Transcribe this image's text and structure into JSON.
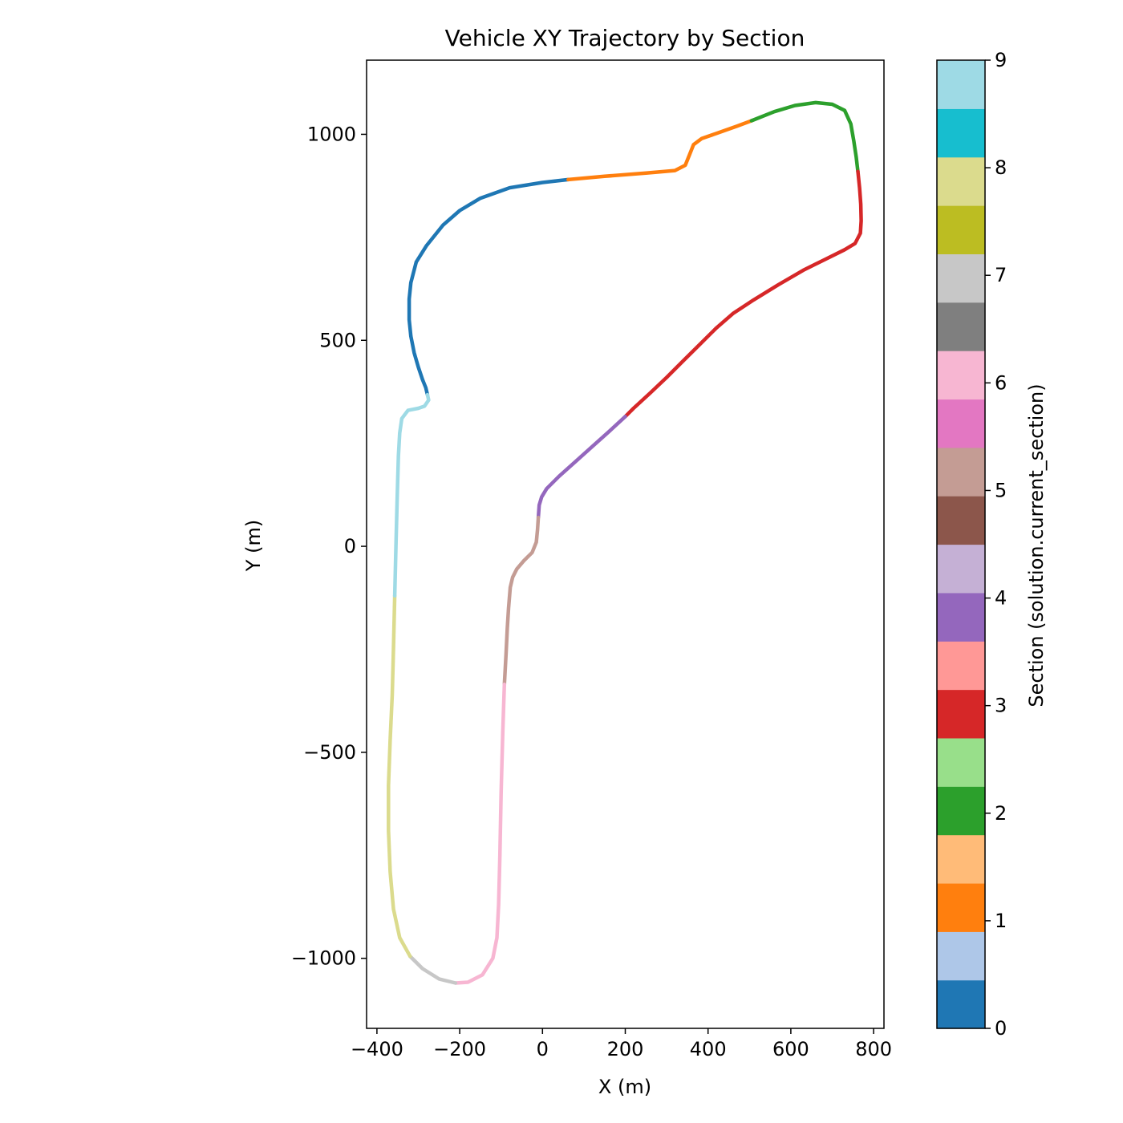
{
  "chart_data": {
    "type": "line",
    "title": "Vehicle XY Trajectory by Section",
    "xlabel": "X (m)",
    "ylabel": "Y (m)",
    "xlim": [
      -425,
      825
    ],
    "ylim": [
      -1170,
      1180
    ],
    "xticks": [
      -400,
      -200,
      0,
      200,
      400,
      600,
      800
    ],
    "xtick_labels": [
      "−400",
      "−200",
      "0",
      "200",
      "400",
      "600",
      "800"
    ],
    "yticks": [
      -1000,
      -500,
      0,
      500,
      1000
    ],
    "ytick_labels": [
      "−1000",
      "−500",
      "0",
      "500",
      "1000"
    ],
    "grid": false,
    "colorbar": {
      "label": "Section (solution.current_section)",
      "range": [
        0,
        9
      ],
      "ticks": [
        0,
        1,
        2,
        3,
        4,
        5,
        6,
        7,
        8,
        9
      ],
      "tick_labels": [
        "0",
        "1",
        "2",
        "3",
        "4",
        "5",
        "6",
        "7",
        "8",
        "9"
      ],
      "colors": [
        "#1f77b4",
        "#aec7e8",
        "#ff7f0e",
        "#ffbb78",
        "#2ca02c",
        "#98df8a",
        "#d62728",
        "#ff9896",
        "#9467bd",
        "#c5b0d5",
        "#8c564b",
        "#c49c94",
        "#e377c2",
        "#f7b6d2",
        "#7f7f7f",
        "#c7c7c7",
        "#bcbd22",
        "#dbdb8d",
        "#17becf",
        "#9edae5"
      ]
    },
    "series": [
      {
        "name": "Section 0",
        "section": 0,
        "color": "#1f77b4",
        "points": [
          [
            -278,
            368
          ],
          [
            -282,
            385
          ],
          [
            -290,
            405
          ],
          [
            -300,
            435
          ],
          [
            -310,
            470
          ],
          [
            -318,
            510
          ],
          [
            -322,
            550
          ],
          [
            -322,
            600
          ],
          [
            -318,
            640
          ],
          [
            -305,
            690
          ],
          [
            -280,
            730
          ],
          [
            -240,
            780
          ],
          [
            -200,
            815
          ],
          [
            -150,
            845
          ],
          [
            -80,
            870
          ],
          [
            0,
            883
          ],
          [
            62,
            890
          ]
        ]
      },
      {
        "name": "Section 1",
        "section": 1,
        "color": "#ff7f0e",
        "points": [
          [
            62,
            890
          ],
          [
            150,
            898
          ],
          [
            250,
            906
          ],
          [
            320,
            912
          ],
          [
            345,
            925
          ],
          [
            355,
            950
          ],
          [
            365,
            975
          ],
          [
            385,
            990
          ],
          [
            420,
            1002
          ],
          [
            470,
            1020
          ],
          [
            505,
            1033
          ]
        ]
      },
      {
        "name": "Section 2",
        "section": 2,
        "color": "#2ca02c",
        "points": [
          [
            505,
            1033
          ],
          [
            560,
            1055
          ],
          [
            610,
            1070
          ],
          [
            660,
            1077
          ],
          [
            700,
            1073
          ],
          [
            730,
            1058
          ],
          [
            745,
            1025
          ],
          [
            752,
            985
          ],
          [
            758,
            945
          ],
          [
            762,
            910
          ]
        ]
      },
      {
        "name": "Section 3",
        "section": 3,
        "color": "#d62728",
        "points": [
          [
            762,
            910
          ],
          [
            766,
            870
          ],
          [
            769,
            830
          ],
          [
            770,
            790
          ],
          [
            768,
            760
          ],
          [
            755,
            735
          ],
          [
            730,
            720
          ],
          [
            680,
            695
          ],
          [
            630,
            670
          ],
          [
            570,
            635
          ],
          [
            510,
            598
          ],
          [
            460,
            565
          ],
          [
            420,
            530
          ],
          [
            380,
            490
          ],
          [
            340,
            450
          ],
          [
            300,
            410
          ],
          [
            260,
            372
          ],
          [
            220,
            335
          ],
          [
            200,
            315
          ]
        ]
      },
      {
        "name": "Section 4",
        "section": 4,
        "color": "#9467bd",
        "points": [
          [
            200,
            315
          ],
          [
            160,
            278
          ],
          [
            120,
            242
          ],
          [
            80,
            206
          ],
          [
            40,
            170
          ],
          [
            10,
            140
          ],
          [
            -2,
            120
          ],
          [
            -8,
            100
          ],
          [
            -10,
            70
          ]
        ]
      },
      {
        "name": "Section 5",
        "section": 5,
        "color": "#c49c94",
        "points": [
          [
            -10,
            70
          ],
          [
            -12,
            40
          ],
          [
            -15,
            10
          ],
          [
            -25,
            -15
          ],
          [
            -45,
            -35
          ],
          [
            -62,
            -55
          ],
          [
            -72,
            -75
          ],
          [
            -78,
            -100
          ],
          [
            -82,
            -150
          ],
          [
            -85,
            -200
          ],
          [
            -88,
            -260
          ],
          [
            -92,
            -335
          ]
        ]
      },
      {
        "name": "Section 6",
        "section": 6,
        "color": "#f7b6d2",
        "points": [
          [
            -92,
            -335
          ],
          [
            -96,
            -450
          ],
          [
            -100,
            -600
          ],
          [
            -103,
            -750
          ],
          [
            -106,
            -870
          ],
          [
            -110,
            -950
          ],
          [
            -120,
            -1000
          ],
          [
            -145,
            -1040
          ],
          [
            -180,
            -1058
          ],
          [
            -210,
            -1060
          ]
        ]
      },
      {
        "name": "Section 7",
        "section": 7,
        "color": "#c7c7c7",
        "points": [
          [
            -210,
            -1060
          ],
          [
            -250,
            -1050
          ],
          [
            -290,
            -1025
          ],
          [
            -320,
            -995
          ]
        ]
      },
      {
        "name": "Section 8",
        "section": 8,
        "color": "#dbdb8d",
        "points": [
          [
            -320,
            -995
          ],
          [
            -345,
            -950
          ],
          [
            -360,
            -880
          ],
          [
            -368,
            -790
          ],
          [
            -372,
            -690
          ],
          [
            -372,
            -580
          ],
          [
            -368,
            -470
          ],
          [
            -363,
            -360
          ],
          [
            -360,
            -250
          ],
          [
            -357,
            -120
          ]
        ]
      },
      {
        "name": "Section 9",
        "section": 9,
        "color": "#9edae5",
        "points": [
          [
            -357,
            -120
          ],
          [
            -354,
            0
          ],
          [
            -351,
            120
          ],
          [
            -348,
            220
          ],
          [
            -345,
            275
          ],
          [
            -340,
            310
          ],
          [
            -325,
            330
          ],
          [
            -300,
            335
          ],
          [
            -285,
            340
          ],
          [
            -275,
            355
          ],
          [
            -278,
            368
          ]
        ]
      }
    ]
  }
}
